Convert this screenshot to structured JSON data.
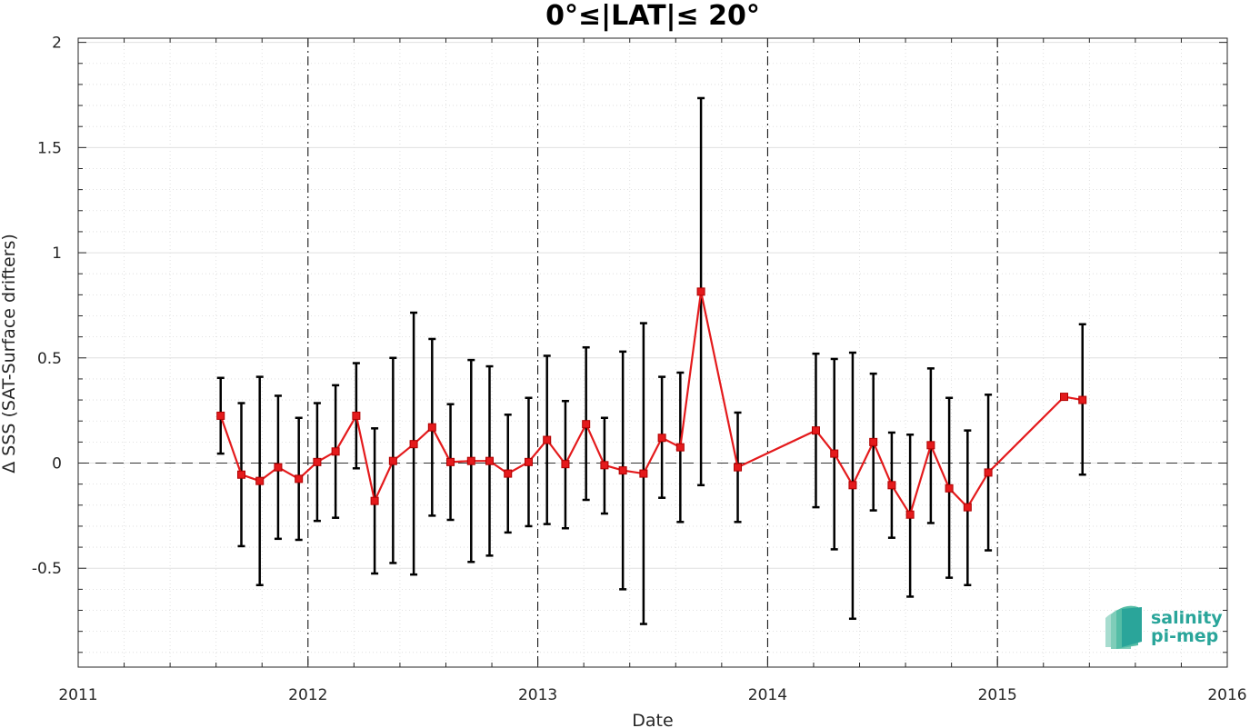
{
  "chart_data": {
    "type": "line",
    "title": "0°≤|LAT|≤ 20°",
    "xlabel": "Date",
    "ylabel": "Δ SSS (SAT-Surface drifters)",
    "xlim": [
      2011,
      2016
    ],
    "ylim": [
      -0.97,
      2.02
    ],
    "xticks": [
      "2011",
      "2012",
      "2013",
      "2014",
      "2015",
      "2016"
    ],
    "yticks": [
      "-0.5",
      "0",
      "0.5",
      "1",
      "1.5",
      "2"
    ],
    "grid": true,
    "reference_line": 0,
    "line_color": "#e41a1c",
    "errorbar_color": "#000000",
    "series": [
      {
        "points": [
          {
            "x": 2011.62,
            "y": 0.225,
            "lo": 0.045,
            "hi": 0.405
          },
          {
            "x": 2011.71,
            "y": -0.055,
            "lo": -0.395,
            "hi": 0.285
          },
          {
            "x": 2011.79,
            "y": -0.085,
            "lo": -0.58,
            "hi": 0.41
          },
          {
            "x": 2011.87,
            "y": -0.02,
            "lo": -0.36,
            "hi": 0.32
          },
          {
            "x": 2011.96,
            "y": -0.075,
            "lo": -0.365,
            "hi": 0.215
          },
          {
            "x": 2012.04,
            "y": 0.005,
            "lo": -0.275,
            "hi": 0.285
          },
          {
            "x": 2012.12,
            "y": 0.055,
            "lo": -0.26,
            "hi": 0.37
          },
          {
            "x": 2012.21,
            "y": 0.225,
            "lo": -0.025,
            "hi": 0.475
          },
          {
            "x": 2012.29,
            "y": -0.18,
            "lo": -0.525,
            "hi": 0.165
          },
          {
            "x": 2012.37,
            "y": 0.01,
            "lo": -0.475,
            "hi": 0.5
          },
          {
            "x": 2012.46,
            "y": 0.09,
            "lo": -0.53,
            "hi": 0.715
          },
          {
            "x": 2012.54,
            "y": 0.17,
            "lo": -0.25,
            "hi": 0.59
          },
          {
            "x": 2012.62,
            "y": 0.005,
            "lo": -0.27,
            "hi": 0.28
          },
          {
            "x": 2012.71,
            "y": 0.01,
            "lo": -0.47,
            "hi": 0.49
          },
          {
            "x": 2012.79,
            "y": 0.01,
            "lo": -0.44,
            "hi": 0.46
          },
          {
            "x": 2012.87,
            "y": -0.05,
            "lo": -0.33,
            "hi": 0.23
          },
          {
            "x": 2012.96,
            "y": 0.005,
            "lo": -0.3,
            "hi": 0.31
          },
          {
            "x": 2013.04,
            "y": 0.11,
            "lo": -0.29,
            "hi": 0.51
          },
          {
            "x": 2013.12,
            "y": -0.005,
            "lo": -0.31,
            "hi": 0.295
          },
          {
            "x": 2013.21,
            "y": 0.185,
            "lo": -0.175,
            "hi": 0.55
          },
          {
            "x": 2013.29,
            "y": -0.01,
            "lo": -0.24,
            "hi": 0.215
          },
          {
            "x": 2013.37,
            "y": -0.035,
            "lo": -0.6,
            "hi": 0.53
          },
          {
            "x": 2013.46,
            "y": -0.05,
            "lo": -0.765,
            "hi": 0.665
          },
          {
            "x": 2013.54,
            "y": 0.12,
            "lo": -0.165,
            "hi": 0.41
          },
          {
            "x": 2013.62,
            "y": 0.075,
            "lo": -0.28,
            "hi": 0.43
          },
          {
            "x": 2013.71,
            "y": 0.815,
            "lo": -0.105,
            "hi": 1.735
          },
          {
            "x": 2013.87,
            "y": -0.02,
            "lo": -0.28,
            "hi": 0.24
          },
          {
            "x": 2014.21,
            "y": 0.155,
            "lo": -0.21,
            "hi": 0.52
          },
          {
            "x": 2014.29,
            "y": 0.045,
            "lo": -0.41,
            "hi": 0.495
          },
          {
            "x": 2014.37,
            "y": -0.105,
            "lo": -0.74,
            "hi": 0.525
          },
          {
            "x": 2014.46,
            "y": 0.1,
            "lo": -0.225,
            "hi": 0.425
          },
          {
            "x": 2014.54,
            "y": -0.105,
            "lo": -0.355,
            "hi": 0.145
          },
          {
            "x": 2014.62,
            "y": -0.245,
            "lo": -0.635,
            "hi": 0.135
          },
          {
            "x": 2014.71,
            "y": 0.085,
            "lo": -0.285,
            "hi": 0.45
          },
          {
            "x": 2014.79,
            "y": -0.12,
            "lo": -0.545,
            "hi": 0.31
          },
          {
            "x": 2014.87,
            "y": -0.21,
            "lo": -0.58,
            "hi": 0.155
          },
          {
            "x": 2014.96,
            "y": -0.045,
            "lo": -0.415,
            "hi": 0.325
          },
          {
            "x": 2015.29,
            "y": 0.315,
            "lo": null,
            "hi": null
          },
          {
            "x": 2015.37,
            "y": 0.3,
            "lo": -0.055,
            "hi": 0.66
          }
        ]
      }
    ]
  },
  "logo": {
    "line1": "salinity",
    "line2": "pi-mep",
    "color": "#2aa59a"
  }
}
